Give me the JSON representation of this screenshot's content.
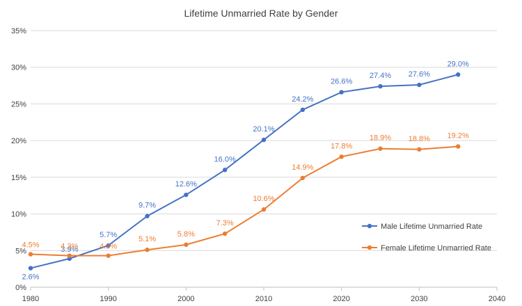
{
  "chart_data": {
    "type": "line",
    "title": "Lifetime Unmarried Rate by Gender",
    "xlabel": "",
    "ylabel": "",
    "xlim": [
      1980,
      2040
    ],
    "ylim": [
      0,
      35
    ],
    "x_ticks": [
      "1980",
      "1990",
      "2000",
      "2010",
      "2020",
      "2030",
      "2040"
    ],
    "y_ticks": [
      "0%",
      "5%",
      "10%",
      "15%",
      "20%",
      "25%",
      "30%",
      "35%"
    ],
    "grid": "horizontal",
    "legend_position": "right",
    "series": [
      {
        "name": "Male Lifetime Unmarried Rate",
        "color": "#4472C4",
        "x": [
          1980,
          1985,
          1990,
          1995,
          2000,
          2005,
          2010,
          2015,
          2020,
          2025,
          2030,
          2035
        ],
        "values": [
          2.6,
          3.9,
          5.7,
          9.7,
          12.6,
          16.0,
          20.1,
          24.2,
          26.6,
          27.4,
          27.6,
          29.0
        ],
        "labels": [
          "2.6%",
          "3.9%",
          "5.7%",
          "9.7%",
          "12.6%",
          "16.0%",
          "20.1%",
          "24.2%",
          "26.6%",
          "27.4%",
          "27.6%",
          "29.0%"
        ]
      },
      {
        "name": "Female Lifetime Unmarried Rate",
        "color": "#ED7D31",
        "x": [
          1980,
          1985,
          1990,
          1995,
          2000,
          2005,
          2010,
          2015,
          2020,
          2025,
          2030,
          2035
        ],
        "values": [
          4.5,
          4.3,
          4.3,
          5.1,
          5.8,
          7.3,
          10.6,
          14.9,
          17.8,
          18.9,
          18.8,
          19.2
        ],
        "labels": [
          "4.5%",
          "4.3%",
          "4.3%",
          "5.1%",
          "5.8%",
          "7.3%",
          "10.6%",
          "14.9%",
          "17.8%",
          "18.9%",
          "18.8%",
          "19.2%"
        ]
      }
    ]
  }
}
